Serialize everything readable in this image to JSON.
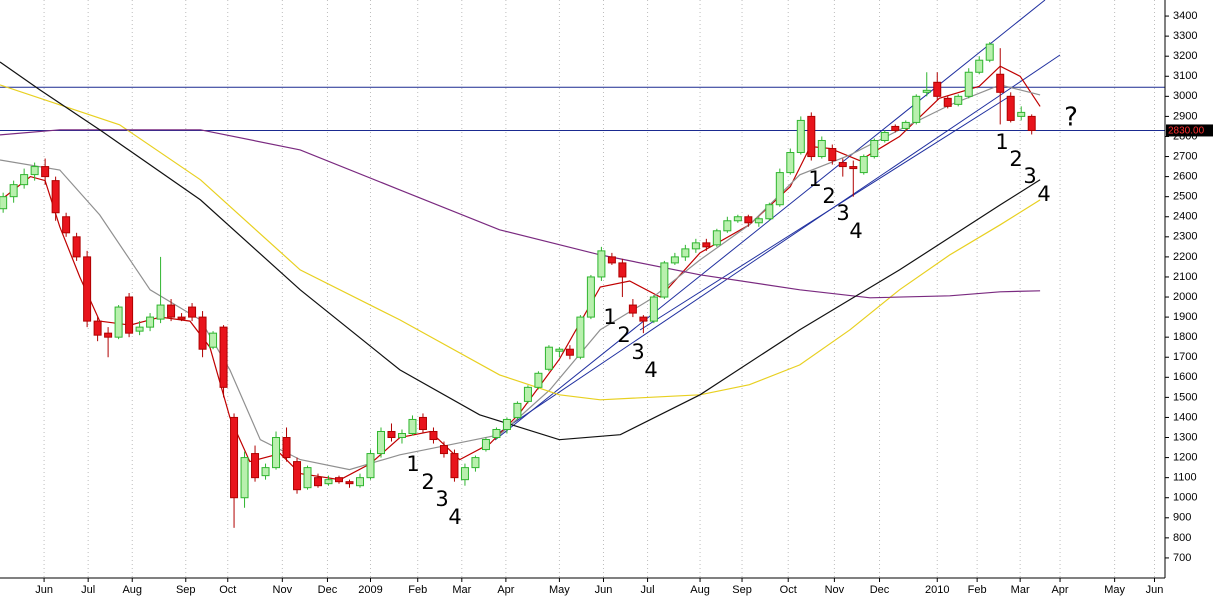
{
  "chart_data": {
    "type": "candlestick",
    "up_color": "#b9f0ae",
    "up_stroke": "#2fb52f",
    "down_color": "#e8141c",
    "down_stroke": "#b00000",
    "open": [
      2440,
      2500,
      2560,
      2610,
      2650,
      2580,
      2400,
      2300,
      2200,
      1880,
      1820,
      1800,
      2000,
      1830,
      1850,
      1890,
      1960,
      1900,
      1950,
      1900,
      1750,
      1850,
      1400,
      1000,
      1220,
      1110,
      1150,
      1300,
      1180,
      1050,
      1100,
      1070,
      1100,
      1080,
      1060,
      1100,
      1220,
      1330,
      1300,
      1320,
      1400,
      1330,
      1260,
      1220,
      1090,
      1150,
      1240,
      1300,
      1340,
      1400,
      1480,
      1550,
      1640,
      1730,
      1740,
      1700,
      1900,
      2100,
      2200,
      2170,
      1960,
      1900,
      1880,
      2000,
      2170,
      2200,
      2240,
      2270,
      2260,
      2330,
      2380,
      2400,
      2370,
      2390,
      2460,
      2620,
      2720,
      2900,
      2700,
      2740,
      2670,
      2650,
      2620,
      2700,
      2780,
      2850,
      2840,
      2870,
      3020,
      3070,
      2990,
      2960,
      3000,
      3120,
      3180,
      3110,
      3000,
      2900,
      2900
    ],
    "high": [
      2520,
      2580,
      2640,
      2670,
      2690,
      2600,
      2420,
      2320,
      2230,
      1900,
      1850,
      1960,
      2020,
      1880,
      1920,
      2200,
      1990,
      1920,
      1970,
      1930,
      1830,
      1860,
      1420,
      1230,
      1260,
      1170,
      1330,
      1350,
      1200,
      1160,
      1120,
      1110,
      1110,
      1090,
      1120,
      1240,
      1350,
      1370,
      1340,
      1410,
      1420,
      1350,
      1280,
      1240,
      1170,
      1210,
      1300,
      1350,
      1400,
      1480,
      1560,
      1630,
      1760,
      1750,
      1760,
      1910,
      2110,
      2250,
      2220,
      2190,
      1990,
      1910,
      2010,
      2180,
      2220,
      2260,
      2290,
      2290,
      2340,
      2400,
      2410,
      2410,
      2400,
      2470,
      2640,
      2740,
      2900,
      2920,
      2800,
      2760,
      2690,
      2680,
      2710,
      2790,
      2830,
      2860,
      2880,
      3010,
      3120,
      3120,
      3000,
      3010,
      3140,
      3200,
      3270,
      3240,
      3020,
      2950,
      2910
    ],
    "low": [
      2420,
      2470,
      2540,
      2580,
      2560,
      2380,
      2300,
      2180,
      1850,
      1780,
      1700,
      1790,
      1800,
      1810,
      1830,
      1870,
      1880,
      1880,
      1880,
      1700,
      1740,
      1500,
      850,
      950,
      1080,
      1090,
      1140,
      1180,
      1020,
      1040,
      1050,
      1060,
      1070,
      1050,
      1050,
      1090,
      1200,
      1280,
      1270,
      1310,
      1320,
      1270,
      1200,
      1080,
      1060,
      1130,
      1230,
      1290,
      1320,
      1390,
      1470,
      1540,
      1630,
      1700,
      1690,
      1690,
      1890,
      2080,
      2160,
      2000,
      1900,
      1820,
      1870,
      1990,
      2160,
      2180,
      2220,
      2230,
      2250,
      2320,
      2370,
      2350,
      2350,
      2380,
      2450,
      2610,
      2710,
      2680,
      2690,
      2660,
      2600,
      2500,
      2610,
      2690,
      2770,
      2820,
      2830,
      2860,
      3000,
      2980,
      2940,
      2950,
      2990,
      3110,
      3170,
      2860,
      2870,
      2880,
      2810
    ],
    "close": [
      2500,
      2560,
      2610,
      2650,
      2600,
      2420,
      2320,
      2200,
      1880,
      1810,
      1800,
      1950,
      1820,
      1850,
      1900,
      1960,
      1900,
      1890,
      1900,
      1740,
      1820,
      1550,
      1000,
      1200,
      1100,
      1150,
      1300,
      1200,
      1040,
      1150,
      1060,
      1090,
      1080,
      1070,
      1100,
      1220,
      1330,
      1300,
      1320,
      1390,
      1340,
      1290,
      1220,
      1100,
      1150,
      1200,
      1290,
      1340,
      1390,
      1470,
      1550,
      1620,
      1750,
      1740,
      1710,
      1900,
      2100,
      2230,
      2170,
      2100,
      1920,
      1880,
      2000,
      2170,
      2200,
      2240,
      2270,
      2250,
      2330,
      2380,
      2400,
      2370,
      2390,
      2460,
      2620,
      2720,
      2880,
      2700,
      2780,
      2680,
      2650,
      2640,
      2700,
      2780,
      2820,
      2830,
      2870,
      3000,
      3030,
      3000,
      2950,
      3000,
      3120,
      3180,
      3260,
      3020,
      2880,
      2920,
      2830
    ],
    "lines": [
      {
        "color": "#c00000",
        "x": [
          -0.3,
          2.6,
          4.0,
          5.4,
          7.3,
          9.2,
          12.1,
          15.0,
          17.8,
          19.7,
          21.6,
          23.5,
          26.4,
          28.3,
          32.1,
          35.0,
          37.8,
          40.7,
          43.5,
          46.4,
          49.2,
          53.0,
          56.9,
          59.7,
          62.6,
          66.4,
          71.1,
          75.0,
          76.9,
          78.8,
          81.6,
          85.4,
          89.2,
          93.0,
          95.0,
          96.9,
          98.8
        ],
        "values": [
          2480,
          2600,
          2580,
          2350,
          2100,
          1880,
          1860,
          1900,
          1880,
          1750,
          1400,
          1180,
          1220,
          1120,
          1090,
          1170,
          1300,
          1330,
          1190,
          1270,
          1420,
          1690,
          2050,
          2080,
          2000,
          2220,
          2360,
          2550,
          2750,
          2740,
          2680,
          2800,
          2990,
          3050,
          3150,
          3100,
          2950
        ]
      },
      {
        "color": "#909090",
        "x": [
          -0.3,
          5.4,
          9.2,
          14.0,
          18.8,
          21.6,
          24.5,
          28.3,
          33.0,
          37.8,
          42.6,
          47.3,
          52.1,
          56.9,
          61.6,
          66.4,
          71.1,
          75.9,
          80.7,
          85.4,
          90.2,
          95.0,
          98.8
        ],
        "values": [
          2683,
          2633,
          2409,
          2036,
          1886,
          1637,
          1289,
          1190,
          1140,
          1214,
          1264,
          1314,
          1538,
          1837,
          1986,
          2185,
          2360,
          2609,
          2708,
          2833,
          2957,
          3057,
          3007
        ]
      },
      {
        "color": "#e8d020",
        "x": [
          -0.3,
          11.1,
          18.8,
          28.3,
          37.8,
          47.3,
          53.0,
          56.9,
          66.4,
          71.1,
          75.9,
          80.7,
          85.4,
          90.2,
          95.0,
          98.8
        ],
        "values": [
          3057,
          2858,
          2584,
          2135,
          1886,
          1612,
          1513,
          1488,
          1513,
          1563,
          1662,
          1837,
          2036,
          2210,
          2360,
          2484
        ]
      },
      {
        "color": "#7a2a80",
        "x": [
          -0.3,
          5.4,
          18.8,
          28.3,
          37.8,
          47.3,
          56.9,
          66.4,
          75.9,
          82.6,
          90.2,
          95.0,
          98.8
        ],
        "values": [
          2808,
          2833,
          2833,
          2733,
          2534,
          2335,
          2210,
          2111,
          2036,
          1996,
          2006,
          2026,
          2031
        ]
      },
      {
        "color": "#111111",
        "x": [
          -0.3,
          3.5,
          9.2,
          18.8,
          28.3,
          37.8,
          45.4,
          53.0,
          58.8,
          66.4,
          75.9,
          85.4,
          95.0,
          98.8
        ],
        "values": [
          3171,
          3032,
          2833,
          2484,
          2036,
          1637,
          1413,
          1289,
          1314,
          1513,
          1837,
          2135,
          2459,
          2584
        ]
      }
    ],
    "levels": [
      3045,
      2830
    ],
    "price_label": {
      "value": 2830,
      "label": "2830.00"
    },
    "annotations": [
      "1",
      "2",
      "3",
      "4",
      "1",
      "2",
      "3",
      "4",
      "1",
      "2",
      "3",
      "4",
      "1",
      "2",
      "3",
      "4",
      "?"
    ],
    "xlim": [
      -0.3,
      110.7
    ],
    "xticks": [
      {
        "value": 3.9,
        "label": "Jun"
      },
      {
        "value": 8.1,
        "label": "Jul"
      },
      {
        "value": 12.3,
        "label": "Aug"
      },
      {
        "value": 17.4,
        "label": "Sep"
      },
      {
        "value": 21.4,
        "label": "Oct"
      },
      {
        "value": 26.6,
        "label": "Nov"
      },
      {
        "value": 30.9,
        "label": "Dec"
      },
      {
        "value": 35.0,
        "label": "2009"
      },
      {
        "value": 39.5,
        "label": "Feb"
      },
      {
        "value": 43.7,
        "label": "Mar"
      },
      {
        "value": 47.9,
        "label": "Apr"
      },
      {
        "value": 53.0,
        "label": "May"
      },
      {
        "value": 57.2,
        "label": "Jun"
      },
      {
        "value": 61.4,
        "label": "Jul"
      },
      {
        "value": 66.4,
        "label": "Aug"
      },
      {
        "value": 70.4,
        "label": "Sep"
      },
      {
        "value": 74.8,
        "label": "Oct"
      },
      {
        "value": 79.2,
        "label": "Nov"
      },
      {
        "value": 83.5,
        "label": "Dec"
      },
      {
        "value": 89.0,
        "label": "2010"
      },
      {
        "value": 92.8,
        "label": "Feb"
      },
      {
        "value": 96.9,
        "label": "Mar"
      },
      {
        "value": 100.7,
        "label": "Apr"
      },
      {
        "value": 105.9,
        "label": "May"
      },
      {
        "value": 109.7,
        "label": "Jun"
      }
    ],
    "ylim": [
      600,
      3480
    ],
    "yticks": [
      700,
      800,
      900,
      1000,
      1100,
      1200,
      1300,
      1400,
      1500,
      1600,
      1700,
      1800,
      1900,
      2000,
      2100,
      2200,
      2300,
      2400,
      2500,
      2600,
      2700,
      2800,
      2900,
      3000,
      3100,
      3200,
      3300,
      3400
    ],
    "grid": true
  }
}
